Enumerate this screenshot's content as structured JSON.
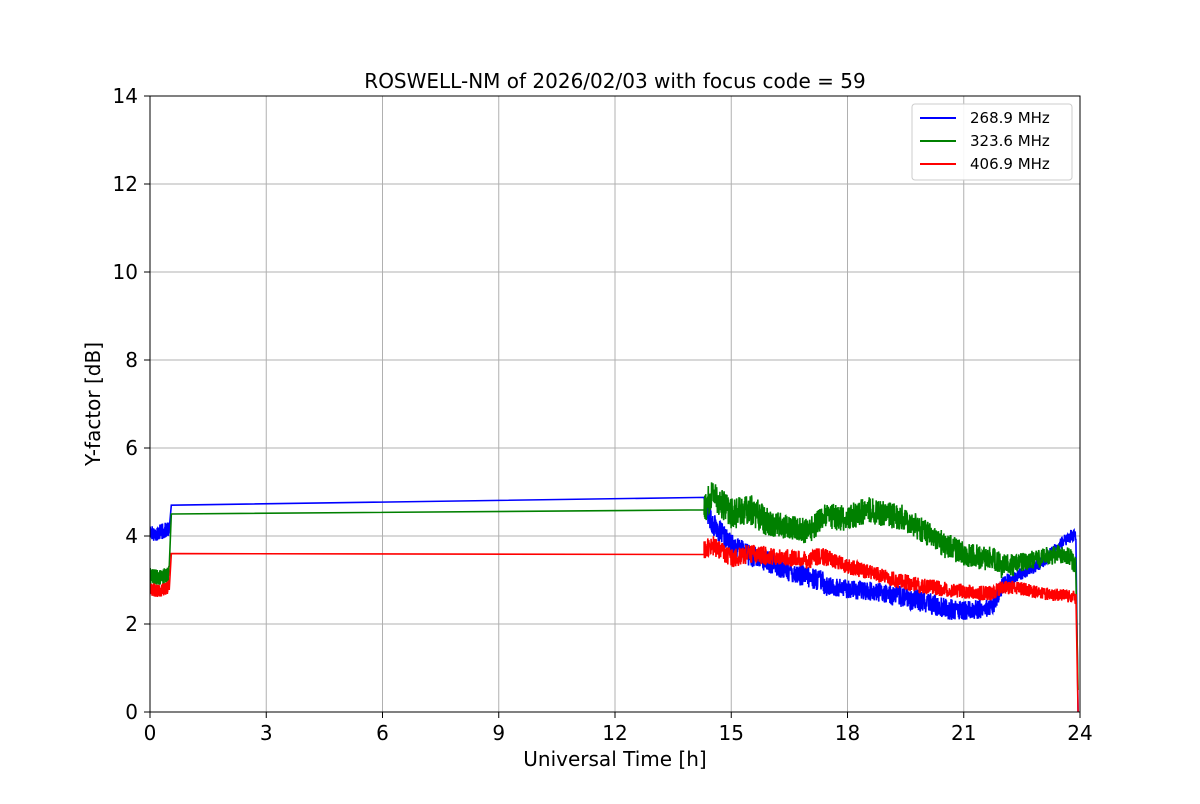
{
  "chart_data": {
    "type": "line",
    "title": "ROSWELL-NM of 2026/02/03 with focus code = 59",
    "xlabel": "Universal Time [h]",
    "ylabel": "Y-factor [dB]",
    "xlim": [
      0,
      24
    ],
    "ylim": [
      0,
      14
    ],
    "xticks": [
      0,
      3,
      6,
      9,
      12,
      15,
      18,
      21,
      24
    ],
    "yticks": [
      0,
      2,
      4,
      6,
      8,
      10,
      12,
      14
    ],
    "xtick_labels": [
      "0",
      "3",
      "6",
      "9",
      "12",
      "15",
      "18",
      "21",
      "24"
    ],
    "ytick_labels": [
      "0",
      "2",
      "4",
      "6",
      "8",
      "10",
      "12",
      "14"
    ],
    "grid": true,
    "legend_position": "top-right",
    "series": [
      {
        "name": "268.9 MHz",
        "color": "#0000ff",
        "noise": [
          0.18,
          0.05,
          0.25,
          0.25,
          0.22,
          0.25,
          0.22,
          0.15
        ],
        "x": [
          0.0,
          0.15,
          0.3,
          0.5,
          0.55,
          14.3,
          14.5,
          15.0,
          15.5,
          16.0,
          16.5,
          17.0,
          17.3,
          17.5,
          18.0,
          18.5,
          19.0,
          19.5,
          20.0,
          20.5,
          21.0,
          21.5,
          21.75,
          22.0,
          22.5,
          23.0,
          23.5,
          23.75,
          23.9,
          23.95
        ],
        "y": [
          4.1,
          4.05,
          4.1,
          4.15,
          4.7,
          4.75,
          4.3,
          3.8,
          3.55,
          3.4,
          3.2,
          3.05,
          3.0,
          2.85,
          2.8,
          2.75,
          2.7,
          2.6,
          2.5,
          2.35,
          2.3,
          2.35,
          2.4,
          2.9,
          3.15,
          3.4,
          3.8,
          4.0,
          4.0,
          0.0
        ]
      },
      {
        "name": "323.6 MHz",
        "color": "#008000",
        "noise": [
          0.18,
          0.05,
          0.35,
          0.3,
          0.3,
          0.3,
          0.28,
          0.22
        ],
        "x": [
          0.0,
          0.2,
          0.4,
          0.5,
          0.55,
          14.3,
          14.5,
          15.0,
          15.5,
          16.0,
          16.5,
          17.0,
          17.3,
          17.5,
          18.0,
          18.5,
          19.0,
          19.5,
          20.0,
          20.5,
          21.0,
          21.5,
          21.75,
          22.0,
          22.5,
          23.0,
          23.5,
          23.75,
          23.9,
          23.95
        ],
        "y": [
          3.1,
          3.05,
          3.1,
          3.15,
          4.5,
          4.6,
          5.0,
          4.5,
          4.6,
          4.3,
          4.2,
          4.1,
          4.4,
          4.45,
          4.4,
          4.6,
          4.5,
          4.4,
          4.1,
          3.8,
          3.6,
          3.5,
          3.5,
          3.3,
          3.4,
          3.5,
          3.6,
          3.5,
          3.3,
          0.5
        ]
      },
      {
        "name": "406.9 MHz",
        "color": "#ff0000",
        "noise": [
          0.15,
          0.05,
          0.22,
          0.2,
          0.18,
          0.18,
          0.17,
          0.15
        ],
        "x": [
          0.0,
          0.2,
          0.4,
          0.5,
          0.55,
          14.3,
          14.5,
          15.0,
          15.5,
          16.0,
          16.5,
          17.0,
          17.3,
          17.5,
          18.0,
          18.5,
          19.0,
          19.5,
          20.0,
          20.5,
          21.0,
          21.5,
          21.75,
          22.0,
          22.5,
          23.0,
          23.5,
          23.75,
          23.9,
          23.95
        ],
        "y": [
          2.8,
          2.75,
          2.8,
          2.85,
          3.6,
          3.7,
          3.8,
          3.5,
          3.6,
          3.55,
          3.5,
          3.45,
          3.55,
          3.5,
          3.3,
          3.2,
          3.05,
          2.95,
          2.85,
          2.8,
          2.75,
          2.7,
          2.7,
          2.85,
          2.8,
          2.7,
          2.65,
          2.65,
          2.6,
          0.0
        ]
      }
    ]
  }
}
